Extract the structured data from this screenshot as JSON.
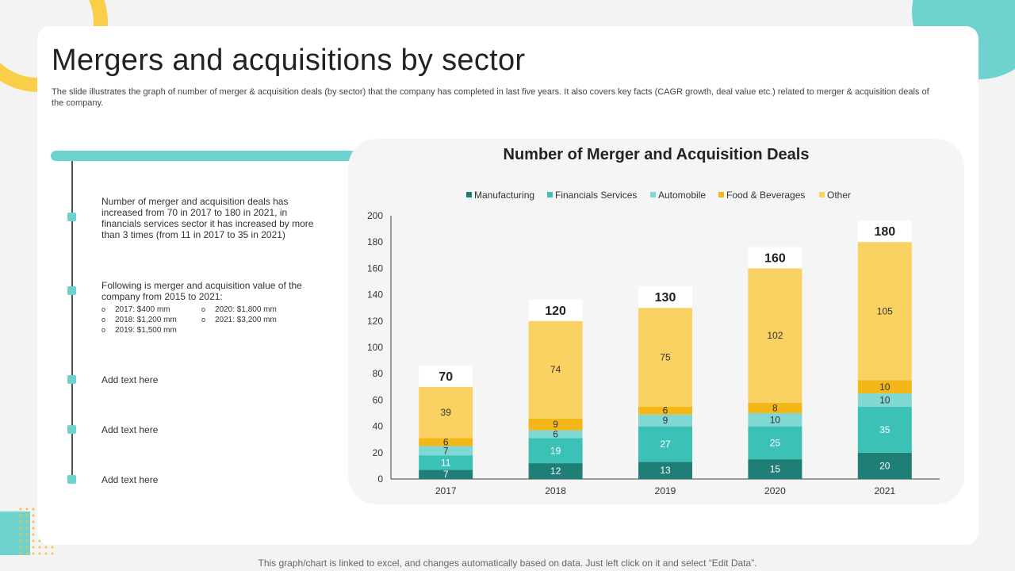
{
  "slide": {
    "title": "Mergers and acquisitions by sector",
    "subtitle": "The slide illustrates the graph of number of merger & acquisition deals (by sector) that the company has completed in last five years. It also covers key facts (CAGR growth, deal value etc.) related to merger & acquisition deals of the company.",
    "footer": "This graph/chart is linked to excel, and changes automatically based on data. Just left click on it and select “Edit Data”."
  },
  "timeline": {
    "point1": "Number of merger and acquisition deals has increased from 70 in 2017 to 180 in 2021, in financials services sector it has increased by more than 3 times (from 11 in 2017 to 35 in 2021)",
    "point2": "Following is merger and acquisition value of the company from 2015 to 2021:",
    "values": [
      "2017: $400 mm",
      "2018: $1,200 mm",
      "2019: $1,500 mm",
      "2020: $1,800 mm",
      "2021: $3,200 mm"
    ],
    "point3": "Add text here",
    "point4": "Add text here",
    "point5": "Add text here"
  },
  "colors": {
    "manufacturing": "#1f7f77",
    "financials": "#3cc1b6",
    "automobile": "#7fd9d2",
    "food": "#f3b71a",
    "other": "#f9d262",
    "accent": "#6ed3cf"
  },
  "chart_data": {
    "type": "bar",
    "stacked": true,
    "title": "Number of Merger and Acquisition Deals",
    "categories": [
      "2017",
      "2018",
      "2019",
      "2020",
      "2021"
    ],
    "totals": [
      70,
      120,
      130,
      160,
      180
    ],
    "series": [
      {
        "name": "Manufacturing",
        "values": [
          7,
          12,
          13,
          15,
          20
        ]
      },
      {
        "name": "Financials Services",
        "values": [
          11,
          19,
          27,
          25,
          35
        ]
      },
      {
        "name": "Automobile",
        "values": [
          7,
          6,
          9,
          10,
          10
        ]
      },
      {
        "name": "Food & Beverages",
        "values": [
          6,
          9,
          6,
          8,
          10
        ]
      },
      {
        "name": "Other",
        "values": [
          39,
          74,
          75,
          102,
          105
        ]
      }
    ],
    "yticks": [
      "0",
      "20",
      "40",
      "60",
      "80",
      "100",
      "120",
      "140",
      "160",
      "180",
      "200"
    ],
    "ylim": [
      0,
      200
    ],
    "legend_position": "top"
  }
}
